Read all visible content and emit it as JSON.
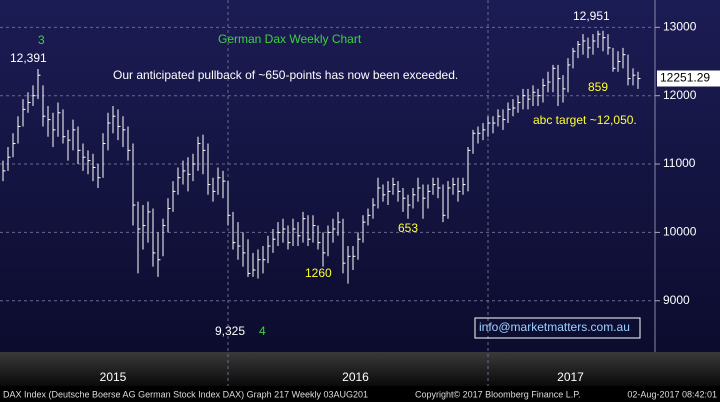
{
  "chart_data": {
    "type": "ohlc",
    "title": "German Dax Weekly Chart",
    "categories": [
      null,
      null,
      null,
      null,
      null,
      null,
      null,
      null,
      null,
      null,
      null,
      null,
      null,
      null,
      null,
      null,
      null,
      null,
      null,
      null,
      null,
      null,
      null,
      null,
      null,
      null,
      null,
      null,
      null,
      null,
      null,
      null,
      null,
      null,
      null,
      null,
      null,
      null,
      null,
      null,
      null,
      null,
      null,
      null,
      null,
      null,
      null,
      null,
      null,
      null,
      null,
      null,
      null,
      null,
      null,
      null,
      null,
      null,
      null,
      null,
      null,
      null,
      null,
      null,
      null,
      null,
      null,
      null,
      null,
      null,
      null,
      null,
      null,
      null,
      null,
      null,
      null,
      null,
      null,
      null,
      null,
      null,
      null,
      null,
      null,
      null,
      null,
      null,
      null,
      null,
      null,
      null,
      null,
      null,
      null,
      null,
      null,
      null,
      null,
      null,
      null,
      null,
      null,
      null,
      null,
      null,
      null,
      null,
      null,
      null,
      null,
      null,
      null,
      null,
      null,
      null,
      null,
      null,
      null,
      null,
      null,
      null,
      null,
      null,
      null,
      null,
      null,
      null
    ],
    "high": [
      11050,
      11250,
      11450,
      11700,
      11950,
      12050,
      12150,
      12391,
      12150,
      11850,
      11750,
      11900,
      11800,
      11500,
      11650,
      11550,
      11300,
      11200,
      11150,
      11000,
      11450,
      11750,
      11850,
      11800,
      11700,
      11550,
      11300,
      10450,
      10400,
      10450,
      10350,
      10000,
      10200,
      10500,
      10750,
      10950,
      11050,
      11100,
      11150,
      11400,
      11430,
      11300,
      10800,
      10950,
      10900,
      10750,
      10300,
      10150,
      10000,
      9900,
      9700,
      9750,
      9800,
      9950,
      10050,
      10150,
      10200,
      10100,
      10200,
      10150,
      10300,
      10250,
      10250,
      10100,
      10000,
      10100,
      10200,
      10300,
      10200,
      9800,
      9800,
      10000,
      10250,
      10350,
      10500,
      10800,
      10700,
      10750,
      10800,
      10750,
      10650,
      10550,
      10650,
      10800,
      10700,
      10700,
      10800,
      10800,
      10700,
      10750,
      10800,
      10800,
      10800,
      11250,
      11500,
      11550,
      11600,
      11700,
      11700,
      11800,
      11800,
      11900,
      11950,
      12000,
      12100,
      12100,
      12150,
      12100,
      12250,
      12350,
      12450,
      12450,
      12300,
      12550,
      12700,
      12800,
      12900,
      12850,
      12900,
      12951,
      12950,
      12900,
      12700,
      12650,
      12700,
      12600,
      12400,
      12350
    ],
    "low": [
      10750,
      10900,
      11100,
      11300,
      11550,
      11750,
      11850,
      11950,
      11550,
      11400,
      11250,
      11400,
      11300,
      11050,
      11200,
      11000,
      10900,
      10850,
      10750,
      10650,
      10800,
      11200,
      11450,
      11350,
      11250,
      11050,
      10100,
      9400,
      9750,
      9850,
      9500,
      9350,
      9650,
      10000,
      10300,
      10550,
      10700,
      10600,
      10750,
      10900,
      10850,
      10550,
      10450,
      10550,
      10500,
      10100,
      9750,
      9600,
      9500,
      9350,
      9350,
      9325,
      9400,
      9550,
      9700,
      9800,
      9850,
      9750,
      9800,
      9800,
      9850,
      9800,
      9850,
      9750,
      9500,
      9650,
      9850,
      9950,
      9400,
      9250,
      9450,
      9600,
      9850,
      10100,
      10200,
      10350,
      10450,
      10400,
      10550,
      10450,
      10300,
      10200,
      10350,
      10450,
      10200,
      10350,
      10550,
      10500,
      10150,
      10200,
      10550,
      10450,
      10550,
      10600,
      11150,
      11300,
      11350,
      11400,
      11450,
      11550,
      11500,
      11600,
      11700,
      11750,
      11800,
      11800,
      11850,
      11850,
      11900,
      12050,
      12050,
      11850,
      11900,
      12050,
      12400,
      12550,
      12600,
      12550,
      12600,
      12700,
      12650,
      12600,
      12350,
      12350,
      12400,
      12150,
      12150,
      12100
    ],
    "close": [
      10900,
      11100,
      11300,
      11550,
      11800,
      11900,
      12000,
      12300,
      11700,
      11650,
      11500,
      11750,
      11400,
      11350,
      11500,
      11200,
      11100,
      11050,
      10950,
      10800,
      11300,
      11600,
      11700,
      11550,
      11500,
      11200,
      10400,
      10050,
      10100,
      10300,
      9700,
      9600,
      10100,
      10350,
      10600,
      10800,
      10900,
      10850,
      11000,
      11300,
      11200,
      10700,
      10600,
      10800,
      10750,
      10250,
      9850,
      9800,
      9700,
      9400,
      9450,
      9600,
      9600,
      9800,
      9900,
      10000,
      10050,
      9850,
      10050,
      9950,
      10200,
      9900,
      10100,
      9850,
      9700,
      10000,
      10050,
      10150,
      9550,
      9650,
      9650,
      9900,
      10150,
      10250,
      10400,
      10650,
      10550,
      10600,
      10700,
      10600,
      10500,
      10400,
      10550,
      10650,
      10500,
      10600,
      10700,
      10650,
      10250,
      10650,
      10700,
      10600,
      10700,
      11200,
      11450,
      11450,
      11500,
      11600,
      11600,
      11700,
      11650,
      11800,
      11820,
      11900,
      12000,
      11950,
      12050,
      12000,
      12150,
      12200,
      12400,
      12250,
      12100,
      12450,
      12650,
      12750,
      12800,
      12700,
      12800,
      12900,
      12850,
      12700,
      12400,
      12500,
      12600,
      12250,
      12300,
      12251
    ],
    "color": "#ffffff",
    "ylim": [
      8250,
      13400
    ],
    "yticks": [
      9000,
      10000,
      11000,
      12000,
      13000
    ],
    "grid": true,
    "xticks": [
      {
        "value": 22,
        "label": "2015"
      },
      {
        "value": 70.5,
        "label": "2016"
      },
      {
        "value": 113.5,
        "label": "2017"
      }
    ],
    "last_price": 12251.29,
    "annotations": [
      {
        "text": "Our anticipated pullback of ~650-points has now been exceeded.",
        "color": "#ffffff"
      },
      {
        "text": "12,391",
        "color": "#ffffff"
      },
      {
        "text": "3",
        "color": "#3ad43a"
      },
      {
        "text": "12,951",
        "color": "#ffffff"
      },
      {
        "text": "859",
        "color": "#ffff33"
      },
      {
        "text": "abc target ~12,050.",
        "color": "#ffff33"
      },
      {
        "text": "653",
        "color": "#ffff33"
      },
      {
        "text": "1260",
        "color": "#ffff33"
      },
      {
        "text": "9,325",
        "color": "#ffffff"
      },
      {
        "text": "4",
        "color": "#3ad43a"
      }
    ],
    "email": "info@marketmatters.com.au",
    "footer": {
      "left": "DAX Index (Deutsche Boerse AG German Stock Index DAX) Graph 217  Weekly 03AUG201",
      "center": "Copyright© 2017 Bloomberg Finance L.P.",
      "right": "02-Aug-2017 08:42:01"
    }
  }
}
